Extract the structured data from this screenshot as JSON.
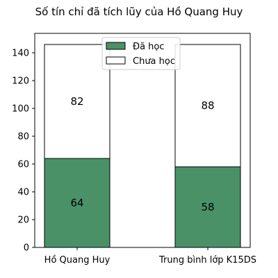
{
  "chart_data": {
    "type": "bar",
    "stacked": true,
    "title": "Số tín chỉ đã tích lũy của Hồ Quang Huy",
    "categories": [
      "Hồ Quang Huy",
      "Trung bình lớp K15DS"
    ],
    "series": [
      {
        "name": "Đã học",
        "values": [
          64,
          58
        ],
        "color": "#4a9168"
      },
      {
        "name": "Chưa học",
        "values": [
          82,
          88
        ],
        "color": "#ffffff"
      }
    ],
    "xlabel": "",
    "ylabel": "",
    "ylim": [
      0,
      154
    ],
    "yticks": [
      0,
      20,
      40,
      60,
      80,
      100,
      120,
      140
    ],
    "grid": false,
    "legend_position": "top-center"
  }
}
